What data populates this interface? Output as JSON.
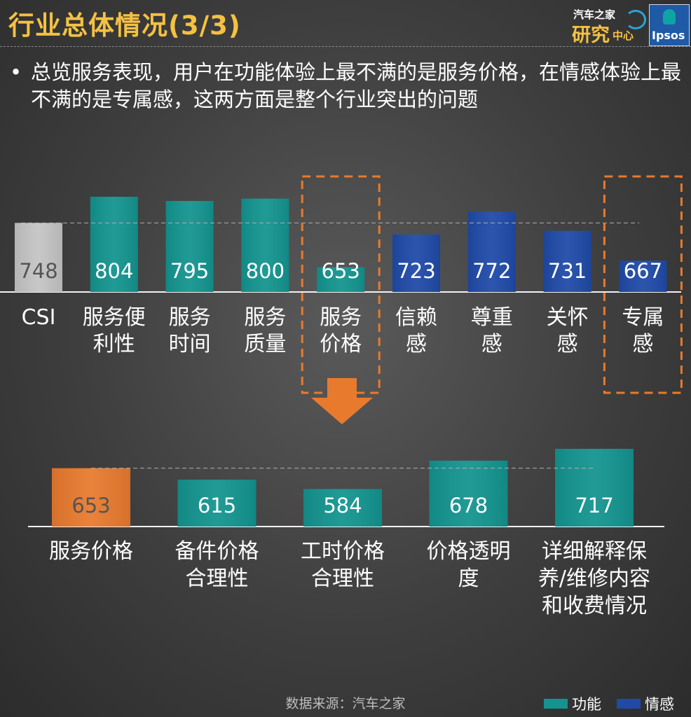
{
  "header": {
    "title": "行业总体情况(3/3)",
    "logo_autohome": {
      "line1": "汽车之家",
      "line2": "研究",
      "line3": "中心"
    },
    "logo_ipsos": "Ipsos"
  },
  "bullet": {
    "dot": "•",
    "text": "总览服务表现，用户在功能体验上最不满的是服务价格，在情感体验上最不满的是专属感，这两方面是整个行业突出的问题"
  },
  "colors": {
    "csi": "#c4c4c4",
    "function": "#13948f",
    "emotion": "#1f4aa8",
    "highlight": "#e87a2e",
    "dashed_frame": "#e87a2e"
  },
  "chart_data": [
    {
      "type": "bar",
      "categories": [
        "CSI",
        "服务便\n利性",
        "服务\n时间",
        "服务\n质量",
        "服务\n价格",
        "信赖\n感",
        "尊重\n感",
        "关怀\n感",
        "专属\n感"
      ],
      "values": [
        748,
        804,
        795,
        800,
        653,
        723,
        772,
        731,
        667
      ],
      "groups": [
        "csi",
        "function",
        "function",
        "function",
        "function",
        "emotion",
        "emotion",
        "emotion",
        "emotion"
      ],
      "reference_line": 748,
      "highlighted_categories": [
        "服务\n价格",
        "专属\n感"
      ]
    },
    {
      "type": "bar",
      "categories": [
        "服务价格",
        "备件价格\n合理性",
        "工时价格\n合理性",
        "价格透明\n度",
        "详细解释保\n养/维修内容\n和收费情况"
      ],
      "values": [
        653,
        615,
        584,
        678,
        717
      ],
      "groups": [
        "highlight",
        "function",
        "function",
        "function",
        "function"
      ],
      "reference_line": 653
    }
  ],
  "legend": [
    {
      "label": "功能",
      "group": "function"
    },
    {
      "label": "情感",
      "group": "emotion"
    }
  ],
  "source": "数据来源：汽车之家"
}
